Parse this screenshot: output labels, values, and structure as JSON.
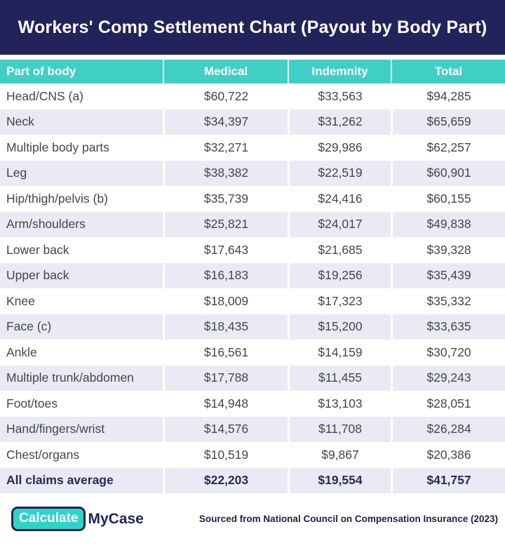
{
  "chart_data": {
    "type": "table",
    "title": "Workers' Comp Settlement Chart (Payout by Body Part)",
    "columns": [
      "Part of body",
      "Medical",
      "Indemnity",
      "Total"
    ],
    "rows": [
      [
        "Head/CNS (a)",
        60722,
        33563,
        94285
      ],
      [
        "Neck",
        34397,
        31262,
        65659
      ],
      [
        "Multiple body parts",
        32271,
        29986,
        62257
      ],
      [
        "Leg",
        38382,
        22519,
        60901
      ],
      [
        "Hip/thigh/pelvis (b)",
        35739,
        24416,
        60155
      ],
      [
        "Arm/shoulders",
        25821,
        24017,
        49838
      ],
      [
        "Lower back",
        17643,
        21685,
        39328
      ],
      [
        "Upper back",
        16183,
        19256,
        35439
      ],
      [
        "Knee",
        18009,
        17323,
        35332
      ],
      [
        "Face (c)",
        18435,
        15200,
        33635
      ],
      [
        "Ankle",
        16561,
        14159,
        30720
      ],
      [
        "Multiple trunk/abdomen",
        17788,
        11455,
        29243
      ],
      [
        "Foot/toes",
        14948,
        13103,
        28051
      ],
      [
        "Hand/fingers/wrist",
        14576,
        11708,
        26284
      ],
      [
        "Chest/organs",
        10519,
        9867,
        20386
      ],
      [
        "All claims average",
        22203,
        19554,
        41757
      ]
    ],
    "bold_last_row": true,
    "value_format": "usd_currency",
    "layout": "striped-rows, header teal band, title navy band"
  },
  "colors": {
    "navy": "#22235a",
    "teal": "#41cfc5",
    "row_stripe": "#e9eaf4",
    "body_text": "#43464e"
  },
  "footer": {
    "logo_badge": "Calculate",
    "logo_suffix": "MyCase",
    "source": "Sourced from National Council on Compensation Insurance (2023)"
  }
}
